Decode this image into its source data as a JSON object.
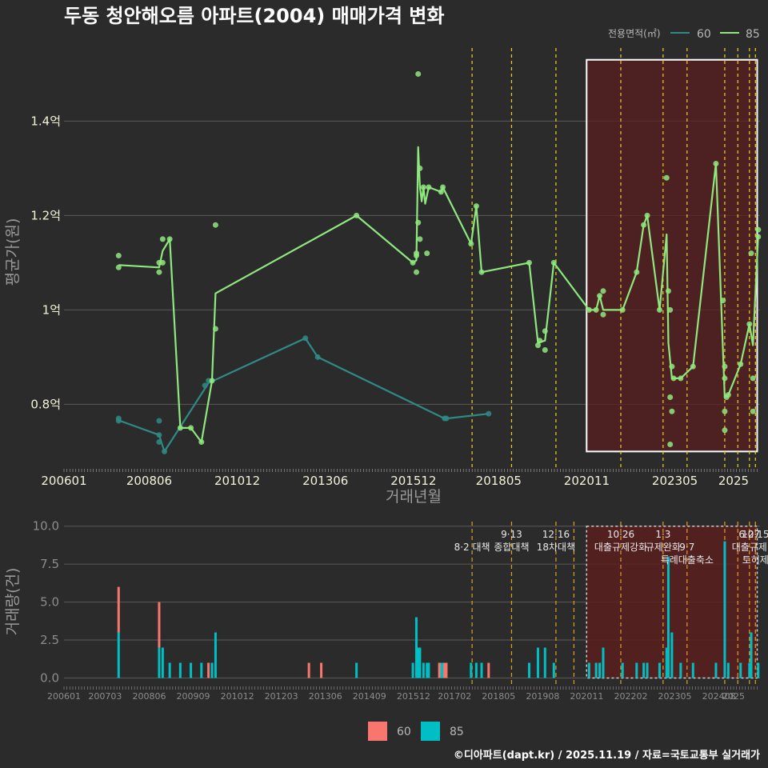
{
  "colors": {
    "background": "#2b2b2b",
    "grid": "#5a5a5a",
    "series_60": "#2f8a86",
    "series_85": "#8fe87e",
    "bar_60": "#f8766d",
    "bar_85": "#00bfc4",
    "policy_line": "#f0d020",
    "policy_line_bottom": "#e0a020",
    "highlight_fill": "#5a1f1f",
    "highlight_border": "#ffffff"
  },
  "credit": "©디아파트(dapt.kr) / 2025.11.19 / 자료=국토교통부 실거래가",
  "chart_data": [
    {
      "type": "line",
      "title": "두동 청안해오름 아파트(2004) 매매가격 변화",
      "xlabel": "거래년월",
      "ylabel": "평균가(원)",
      "legend": {
        "title": "전용면적(㎡)",
        "position": "top-right",
        "items": [
          "60",
          "85"
        ]
      },
      "x_ticks": [
        "200601",
        "200806",
        "201012",
        "201306",
        "201512",
        "201805",
        "202011",
        "202305",
        "2025"
      ],
      "y_ticks": [
        "0.8억",
        "1억",
        "1.2억",
        "1.4억"
      ],
      "y_tick_values": [
        0.8,
        1.0,
        1.2,
        1.4
      ],
      "x_range": [
        2006.0,
        2025.75
      ],
      "ylim": [
        0.665,
        1.555
      ],
      "highlight_range": [
        2020.83,
        2025.67
      ],
      "highlight_ylim": [
        0.7,
        1.53
      ],
      "policy_dates": [
        2017.58,
        2018.7,
        2019.96,
        2021.8,
        2023.0,
        2023.68,
        2024.75,
        2025.12,
        2025.45,
        2025.62
      ],
      "series": [
        {
          "name": "60",
          "points": [
            [
              2007.55,
              0.77
            ],
            [
              2007.55,
              0.765
            ],
            [
              2008.7,
              0.735
            ],
            [
              2008.7,
              0.765
            ],
            [
              2008.7,
              0.72
            ],
            [
              2008.85,
              0.7
            ],
            [
              2010.0,
              0.84
            ],
            [
              2010.1,
              0.85
            ],
            [
              2012.85,
              0.94
            ],
            [
              2013.2,
              0.9
            ],
            [
              2016.8,
              0.77
            ],
            [
              2016.85,
              0.77
            ],
            [
              2018.05,
              0.78
            ]
          ],
          "line": [
            [
              2007.55,
              0.766
            ],
            [
              2008.7,
              0.735
            ],
            [
              2008.85,
              0.7
            ],
            [
              2010.1,
              0.845
            ],
            [
              2012.85,
              0.94
            ],
            [
              2013.2,
              0.9
            ],
            [
              2016.8,
              0.77
            ],
            [
              2016.85,
              0.77
            ],
            [
              2018.05,
              0.78
            ]
          ]
        },
        {
          "name": "85",
          "points": [
            [
              2007.55,
              1.115
            ],
            [
              2007.55,
              1.09
            ],
            [
              2008.7,
              1.1
            ],
            [
              2008.7,
              1.08
            ],
            [
              2008.8,
              1.1
            ],
            [
              2008.8,
              1.15
            ],
            [
              2009.0,
              1.15
            ],
            [
              2009.3,
              0.75
            ],
            [
              2009.6,
              0.75
            ],
            [
              2009.9,
              0.72
            ],
            [
              2010.2,
              0.85
            ],
            [
              2010.3,
              1.18
            ],
            [
              2010.3,
              0.96
            ],
            [
              2014.3,
              1.2
            ],
            [
              2015.9,
              1.1
            ],
            [
              2016.0,
              1.08
            ],
            [
              2016.0,
              1.12
            ],
            [
              2016.0,
              1.115
            ],
            [
              2016.05,
              1.185
            ],
            [
              2016.05,
              1.5
            ],
            [
              2016.1,
              1.3
            ],
            [
              2016.1,
              1.15
            ],
            [
              2016.2,
              1.26
            ],
            [
              2016.3,
              1.12
            ],
            [
              2016.35,
              1.26
            ],
            [
              2016.7,
              1.25
            ],
            [
              2016.75,
              1.26
            ],
            [
              2017.55,
              1.14
            ],
            [
              2017.7,
              1.22
            ],
            [
              2017.85,
              1.08
            ],
            [
              2019.2,
              1.1
            ],
            [
              2019.45,
              0.925
            ],
            [
              2019.5,
              0.935
            ],
            [
              2019.65,
              0.915
            ],
            [
              2019.65,
              0.955
            ],
            [
              2019.9,
              1.1
            ],
            [
              2020.9,
              1.0
            ],
            [
              2021.1,
              1.0
            ],
            [
              2021.2,
              1.03
            ],
            [
              2021.3,
              1.04
            ],
            [
              2021.3,
              0.99
            ],
            [
              2021.85,
              1.0
            ],
            [
              2022.25,
              1.08
            ],
            [
              2022.45,
              1.18
            ],
            [
              2022.55,
              1.2
            ],
            [
              2022.9,
              1.0
            ],
            [
              2023.1,
              1.28
            ],
            [
              2023.15,
              1.04
            ],
            [
              2023.2,
              1.0
            ],
            [
              2023.2,
              0.815
            ],
            [
              2023.25,
              0.785
            ],
            [
              2023.25,
              0.88
            ],
            [
              2023.2,
              0.715
            ],
            [
              2023.3,
              0.855
            ],
            [
              2023.5,
              0.855
            ],
            [
              2023.85,
              0.88
            ],
            [
              2024.5,
              1.31
            ],
            [
              2024.7,
              1.02
            ],
            [
              2024.75,
              0.88
            ],
            [
              2024.75,
              0.855
            ],
            [
              2024.75,
              0.785
            ],
            [
              2024.75,
              0.745
            ],
            [
              2024.8,
              0.815
            ],
            [
              2024.85,
              0.82
            ],
            [
              2025.2,
              0.885
            ],
            [
              2025.45,
              0.97
            ],
            [
              2025.55,
              0.855
            ],
            [
              2025.55,
              0.785
            ],
            [
              2025.5,
              1.12
            ],
            [
              2025.7,
              1.17
            ],
            [
              2025.7,
              1.155
            ]
          ],
          "line": [
            [
              2007.55,
              1.095
            ],
            [
              2008.7,
              1.09
            ],
            [
              2008.8,
              1.125
            ],
            [
              2009.0,
              1.15
            ],
            [
              2009.3,
              0.75
            ],
            [
              2009.6,
              0.75
            ],
            [
              2009.9,
              0.72
            ],
            [
              2010.2,
              0.85
            ],
            [
              2010.3,
              1.035
            ],
            [
              2014.3,
              1.2
            ],
            [
              2015.9,
              1.1
            ],
            [
              2016.0,
              1.105
            ],
            [
              2016.05,
              1.345
            ],
            [
              2016.1,
              1.26
            ],
            [
              2016.15,
              1.23
            ],
            [
              2016.2,
              1.26
            ],
            [
              2016.25,
              1.225
            ],
            [
              2016.35,
              1.26
            ],
            [
              2016.7,
              1.25
            ],
            [
              2016.75,
              1.26
            ],
            [
              2017.55,
              1.14
            ],
            [
              2017.7,
              1.22
            ],
            [
              2017.85,
              1.08
            ],
            [
              2019.2,
              1.1
            ],
            [
              2019.45,
              0.93
            ],
            [
              2019.65,
              0.935
            ],
            [
              2019.9,
              1.1
            ],
            [
              2020.9,
              1.0
            ],
            [
              2021.1,
              1.0
            ],
            [
              2021.2,
              1.03
            ],
            [
              2021.3,
              1.0
            ],
            [
              2021.85,
              1.0
            ],
            [
              2022.25,
              1.08
            ],
            [
              2022.45,
              1.18
            ],
            [
              2022.55,
              1.2
            ],
            [
              2022.9,
              1.0
            ],
            [
              2023.1,
              1.16
            ],
            [
              2023.15,
              0.93
            ],
            [
              2023.25,
              0.855
            ],
            [
              2023.5,
              0.855
            ],
            [
              2023.85,
              0.88
            ],
            [
              2024.5,
              1.31
            ],
            [
              2024.75,
              0.815
            ],
            [
              2024.85,
              0.82
            ],
            [
              2025.2,
              0.885
            ],
            [
              2025.45,
              0.97
            ],
            [
              2025.55,
              0.925
            ],
            [
              2025.7,
              1.16
            ]
          ]
        }
      ]
    },
    {
      "type": "bar",
      "xlabel": "",
      "ylabel": "거래량(건)",
      "legend": {
        "position": "bottom",
        "items": [
          "60",
          "85"
        ]
      },
      "x_ticks": [
        "200601",
        "200703",
        "200806",
        "200909",
        "201012",
        "201203",
        "201306",
        "201409",
        "201512",
        "201702",
        "201805",
        "201908",
        "202011",
        "202202",
        "202305",
        "202408",
        "2025"
      ],
      "y_ticks": [
        "0.0",
        "2.5",
        "5.0",
        "7.5",
        "10.0"
      ],
      "y_tick_values": [
        0,
        2.5,
        5,
        7.5,
        10
      ],
      "x_range": [
        2006.0,
        2025.75
      ],
      "ylim": [
        -0.45,
        10.3
      ],
      "highlight_range": [
        2020.83,
        2025.67
      ],
      "highlight_ylim": [
        0,
        10
      ],
      "policies": [
        {
          "date": 2017.58,
          "label": "8·2 대책",
          "row": 1
        },
        {
          "date": 2018.7,
          "label": "9·13",
          "row": 0
        },
        {
          "date": 2018.7,
          "label": "종합대책",
          "row": 1
        },
        {
          "date": 2019.96,
          "label": "12·16",
          "row": 0
        },
        {
          "date": 2019.96,
          "label": "18차대책",
          "row": 1
        },
        {
          "date": 2020.47,
          "label": "",
          "row": -1
        },
        {
          "date": 2021.8,
          "label": "10·26",
          "row": 0
        },
        {
          "date": 2021.8,
          "label": "대출규제강화",
          "row": 1
        },
        {
          "date": 2023.0,
          "label": "1·3",
          "row": 0
        },
        {
          "date": 2023.0,
          "label": "규제완화",
          "row": 1
        },
        {
          "date": 2023.68,
          "label": "9·7",
          "row": 1
        },
        {
          "date": 2023.68,
          "label": "특례대출축소",
          "row": 2
        },
        {
          "date": 2024.75,
          "label": "",
          "row": -1
        },
        {
          "date": 2025.12,
          "label": "",
          "row": -1
        },
        {
          "date": 2025.45,
          "label": "6·27",
          "row": 0
        },
        {
          "date": 2025.45,
          "label": "대출규제",
          "row": 1
        },
        {
          "date": 2025.62,
          "label": "10·15",
          "row": 0
        },
        {
          "date": 2025.62,
          "label": "토허제",
          "row": 2
        }
      ],
      "series": [
        {
          "name": "60",
          "bars": [
            [
              2007.55,
              3
            ],
            [
              2008.7,
              3
            ],
            [
              2010.1,
              1
            ],
            [
              2012.95,
              1
            ],
            [
              2013.3,
              1
            ],
            [
              2016.65,
              1
            ],
            [
              2016.8,
              1
            ],
            [
              2016.85,
              1
            ],
            [
              2018.05,
              1
            ]
          ]
        },
        {
          "name": "85",
          "bars": [
            [
              2007.55,
              3
            ],
            [
              2008.7,
              2
            ],
            [
              2008.8,
              2
            ],
            [
              2009.0,
              1
            ],
            [
              2009.3,
              1
            ],
            [
              2009.6,
              1
            ],
            [
              2009.9,
              1
            ],
            [
              2010.2,
              1
            ],
            [
              2010.3,
              3
            ],
            [
              2014.3,
              1
            ],
            [
              2015.9,
              1
            ],
            [
              2016.0,
              4
            ],
            [
              2016.05,
              2
            ],
            [
              2016.1,
              2
            ],
            [
              2016.2,
              1
            ],
            [
              2016.3,
              1
            ],
            [
              2016.35,
              1
            ],
            [
              2016.7,
              1
            ],
            [
              2016.75,
              1
            ],
            [
              2017.55,
              1
            ],
            [
              2017.7,
              1
            ],
            [
              2017.85,
              1
            ],
            [
              2019.2,
              1
            ],
            [
              2019.45,
              2
            ],
            [
              2019.65,
              2
            ],
            [
              2019.9,
              1
            ],
            [
              2020.9,
              1
            ],
            [
              2021.1,
              1
            ],
            [
              2021.2,
              1
            ],
            [
              2021.3,
              2
            ],
            [
              2021.85,
              1
            ],
            [
              2022.25,
              1
            ],
            [
              2022.45,
              1
            ],
            [
              2022.55,
              1
            ],
            [
              2022.9,
              1
            ],
            [
              2023.1,
              2
            ],
            [
              2023.15,
              8
            ],
            [
              2023.25,
              3
            ],
            [
              2023.5,
              1
            ],
            [
              2023.85,
              1
            ],
            [
              2024.5,
              1
            ],
            [
              2024.75,
              9
            ],
            [
              2024.85,
              1
            ],
            [
              2025.2,
              1
            ],
            [
              2025.45,
              1
            ],
            [
              2025.5,
              3
            ],
            [
              2025.7,
              1
            ]
          ]
        }
      ]
    }
  ]
}
